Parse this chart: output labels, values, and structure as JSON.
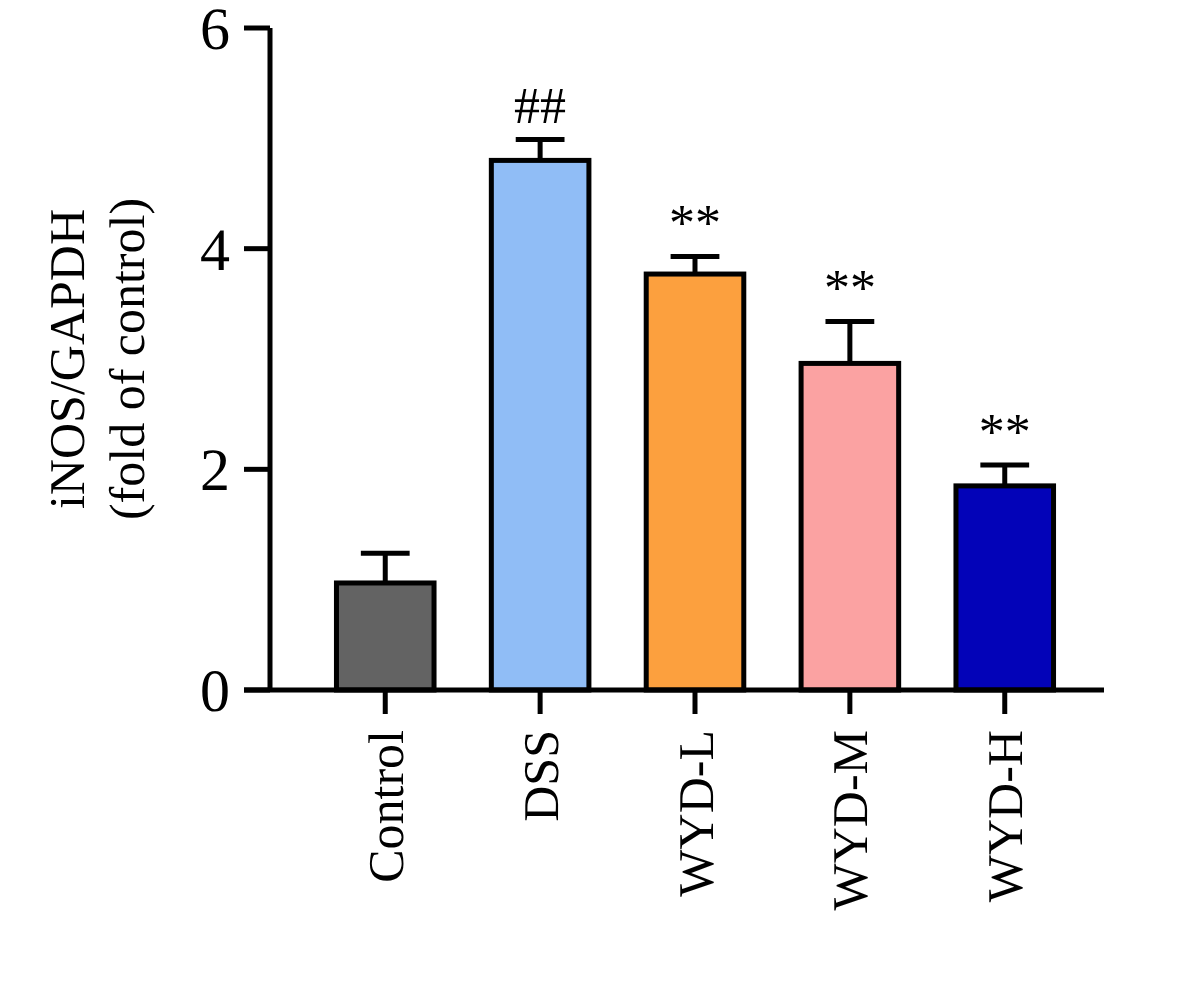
{
  "chart_data": {
    "type": "bar",
    "ylabel": "iNOS/GAPDH\n(fold of control)",
    "categories": [
      "Control",
      "DSS",
      "WYD-L",
      "WYD-M",
      "WYD-H"
    ],
    "values": [
      0.97,
      4.8,
      3.77,
      2.96,
      1.85
    ],
    "errors": [
      0.27,
      0.19,
      0.16,
      0.38,
      0.19
    ],
    "colors": [
      "#636363",
      "#90bdf6",
      "#fca03e",
      "#fba2a2",
      "#0303b8"
    ],
    "ylim": [
      0,
      6
    ],
    "yticks": [
      0,
      2,
      4,
      6
    ],
    "grid": false,
    "annotations": [
      {
        "text": "##",
        "x": "DSS",
        "y": 4.99
      },
      {
        "text": "**",
        "x": "WYD-L",
        "y": 3.93
      },
      {
        "text": "**",
        "x": "WYD-M",
        "y": 3.34
      },
      {
        "text": "**",
        "x": "WYD-H",
        "y": 2.04
      }
    ]
  }
}
